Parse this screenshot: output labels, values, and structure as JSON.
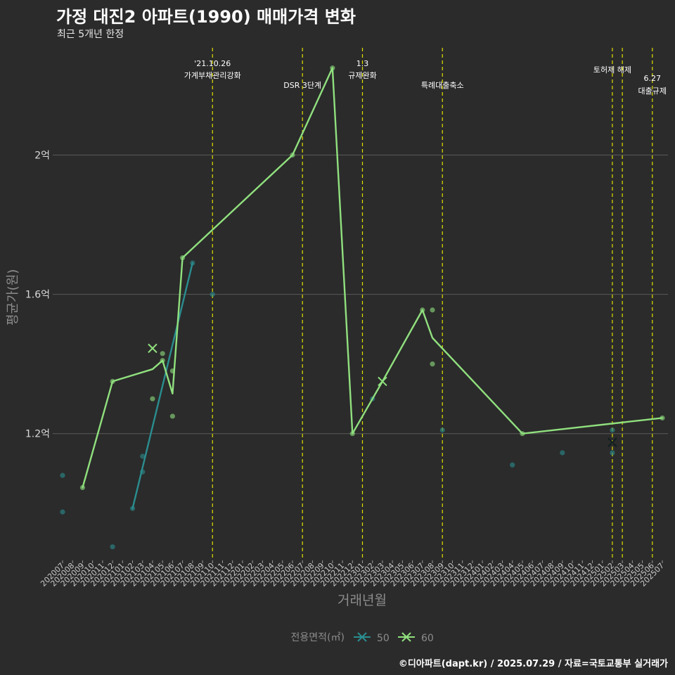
{
  "chart_data": {
    "type": "line",
    "title": "가정 대진2 아파트(1990) 매매가격 변화",
    "subtitle": "최근 5개년 한정",
    "xlabel": "거래년월",
    "ylabel": "평균가(원)",
    "caption": "©디아파트(dapt.kr) / 2025.07.29 / 자료=국토교통부 실거래가",
    "legend": {
      "title": "전용면적(㎡)",
      "position": "bottom",
      "entries": [
        "50",
        "60"
      ]
    },
    "colors": {
      "50": "#2a8d8f",
      "60": "#90e07e",
      "event_line": "#e0e000",
      "grid": "#5a5a5a",
      "background": "#2b2b2b"
    },
    "ylim": [
      0.84,
      2.32
    ],
    "yticks": [
      {
        "value": 1.2,
        "label": "1.2억"
      },
      {
        "value": 1.6,
        "label": "1.6억"
      },
      {
        "value": 2.0,
        "label": "2억"
      }
    ],
    "x_months": [
      "202007",
      "202008",
      "202009",
      "202010",
      "202011",
      "202012",
      "202101",
      "202102",
      "202103",
      "202104",
      "202105",
      "202106",
      "202107",
      "202108",
      "202109",
      "202110",
      "202111",
      "202112",
      "202201",
      "202202",
      "202203",
      "202204",
      "202205",
      "202206",
      "202207",
      "202208",
      "202209",
      "202210",
      "202211",
      "202212",
      "202301",
      "202302",
      "202303",
      "202304",
      "202305",
      "202306",
      "202307",
      "202308",
      "202309",
      "202310",
      "202311",
      "202312",
      "202401",
      "202402",
      "202403",
      "202404",
      "202405",
      "202406",
      "202407",
      "202408",
      "202409",
      "202410",
      "202411",
      "202412",
      "202501",
      "202502",
      "202503",
      "202504",
      "202505",
      "202506",
      "202507"
    ],
    "events": [
      {
        "index": 15.0,
        "label1": "'21.10.26",
        "label2": "가계부채관리강화"
      },
      {
        "index": 24.0,
        "label1": "DSR 3단계",
        "label2": ""
      },
      {
        "index": 30.0,
        "label1": "1.3",
        "label2": "규제완화"
      },
      {
        "index": 38.0,
        "label1": "특례대출축소",
        "label2": ""
      },
      {
        "index": 55.0,
        "label1": "토허제 해제",
        "label2": ""
      },
      {
        "index": 56.0,
        "label1": "",
        "label2": ""
      },
      {
        "index": 59.0,
        "label1": "6.27",
        "label2": "대출규제"
      }
    ],
    "series": [
      {
        "name": "50",
        "line": [
          [
            7,
            0.985
          ],
          [
            13,
            1.69
          ]
        ],
        "points": [
          [
            0,
            0.975
          ],
          [
            0,
            1.08
          ],
          [
            5,
            0.875
          ],
          [
            7,
            0.985
          ],
          [
            8,
            1.09
          ],
          [
            8,
            1.135
          ],
          [
            13,
            1.69
          ],
          [
            15,
            1.6
          ],
          [
            31,
            1.3
          ],
          [
            38,
            1.21
          ],
          [
            45,
            1.11
          ],
          [
            50,
            1.145
          ],
          [
            55,
            1.21
          ],
          [
            55,
            1.145
          ]
        ],
        "cross_points": [
          [
            55,
            1.175
          ]
        ]
      },
      {
        "name": "60",
        "line": [
          [
            2,
            1.045
          ],
          [
            5,
            1.35
          ],
          [
            9,
            1.385
          ],
          [
            10,
            1.41
          ],
          [
            11,
            1.315
          ],
          [
            12,
            1.705
          ],
          [
            23,
            2.0
          ],
          [
            27,
            2.25
          ],
          [
            29,
            1.2
          ],
          [
            32,
            1.35
          ],
          [
            36,
            1.555
          ],
          [
            37,
            1.475
          ],
          [
            46,
            1.2
          ],
          [
            60,
            1.245
          ]
        ],
        "points": [
          [
            2,
            1.045
          ],
          [
            5,
            1.35
          ],
          [
            9,
            1.3
          ],
          [
            10,
            1.43
          ],
          [
            10,
            1.41
          ],
          [
            11,
            1.38
          ],
          [
            11,
            1.25
          ],
          [
            12,
            1.705
          ],
          [
            23,
            2.0
          ],
          [
            27,
            2.25
          ],
          [
            29,
            1.2
          ],
          [
            36,
            1.555
          ],
          [
            37,
            1.555
          ],
          [
            37,
            1.4
          ],
          [
            46,
            1.2
          ],
          [
            60,
            1.245
          ]
        ],
        "cross_points": [
          [
            9,
            1.445
          ],
          [
            32,
            1.35
          ]
        ]
      }
    ]
  }
}
